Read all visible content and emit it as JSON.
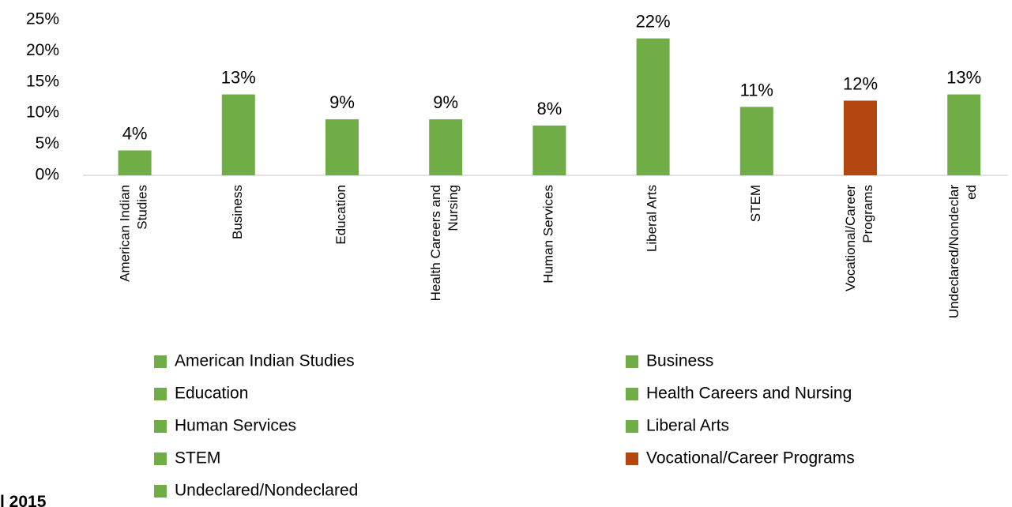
{
  "chart_data": {
    "type": "bar",
    "categories": [
      "American Indian Studies",
      "Business",
      "Education",
      "Health Careers and Nursing",
      "Human Services",
      "Liberal Arts",
      "STEM",
      "Vocational/Career Programs",
      "Undeclared/Nondeclared"
    ],
    "values": [
      4,
      13,
      9,
      9,
      8,
      22,
      11,
      12,
      13
    ],
    "value_labels": [
      "4%",
      "13%",
      "9%",
      "9%",
      "8%",
      "22%",
      "11%",
      "12%",
      "13%"
    ],
    "colors": [
      "#70ad47",
      "#70ad47",
      "#70ad47",
      "#70ad47",
      "#70ad47",
      "#70ad47",
      "#70ad47",
      "#b4460f",
      "#70ad47"
    ],
    "ylim": [
      0,
      25
    ],
    "yticks": [
      {
        "value": 0,
        "label": "0%"
      },
      {
        "value": 5,
        "label": "5%"
      },
      {
        "value": 10,
        "label": "10%"
      },
      {
        "value": 15,
        "label": "15%"
      },
      {
        "value": 20,
        "label": "20%"
      },
      {
        "value": 25,
        "label": "25%"
      }
    ],
    "grid": false,
    "legend": "bottom",
    "footnote": "l 2015"
  }
}
